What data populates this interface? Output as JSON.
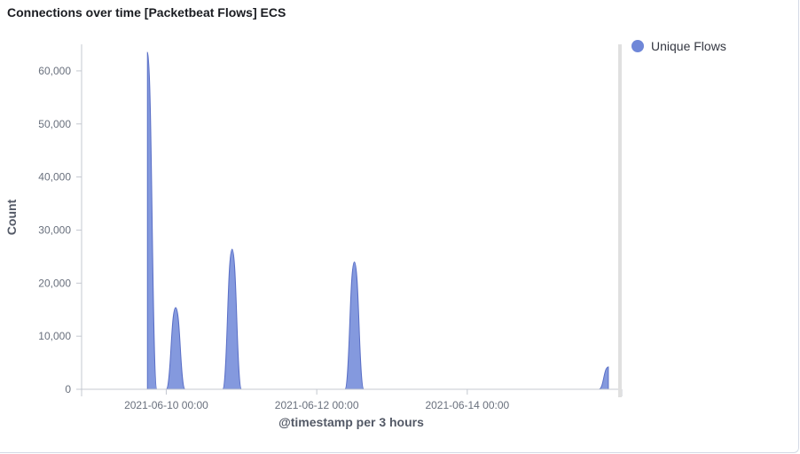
{
  "panel": {
    "title": "Connections over time [Packetbeat Flows] ECS"
  },
  "legend": {
    "items": [
      {
        "label": "Unique Flows",
        "color": "#6f87d8"
      }
    ]
  },
  "chart_data": {
    "type": "area",
    "title": "Connections over time [Packetbeat Flows] ECS",
    "xlabel": "@timestamp per 3 hours",
    "ylabel": "Count",
    "ylim": [
      0,
      65000
    ],
    "yticks": [
      0,
      10000,
      20000,
      30000,
      40000,
      50000,
      60000
    ],
    "ytick_labels": [
      "0",
      "10,000",
      "20,000",
      "30,000",
      "40,000",
      "50,000",
      "60,000"
    ],
    "xlim": [
      "2021-06-08 21:00",
      "2021-06-15 23:00"
    ],
    "xticks": [
      "2021-06-10 00:00",
      "2021-06-12 00:00",
      "2021-06-14 00:00"
    ],
    "xtick_labels": [
      "2021-06-10 00:00",
      "2021-06-12 00:00",
      "2021-06-14 00:00"
    ],
    "grid": false,
    "legend_position": "top-right",
    "series": [
      {
        "name": "Unique Flows",
        "color": "#6f87d8",
        "x": [
          "2021-06-09 18:00",
          "2021-06-09 21:00",
          "2021-06-10 00:00",
          "2021-06-10 00:00",
          "2021-06-10 03:00",
          "2021-06-10 06:00",
          "2021-06-10 18:00",
          "2021-06-10 21:00",
          "2021-06-11 00:00",
          "2021-06-12 09:00",
          "2021-06-12 12:00",
          "2021-06-12 15:00",
          "2021-06-15 18:00",
          "2021-06-15 21:00"
        ],
        "values": [
          63500,
          0,
          0,
          0,
          15400,
          0,
          0,
          26400,
          0,
          0,
          24000,
          0,
          0,
          4200
        ]
      }
    ]
  }
}
